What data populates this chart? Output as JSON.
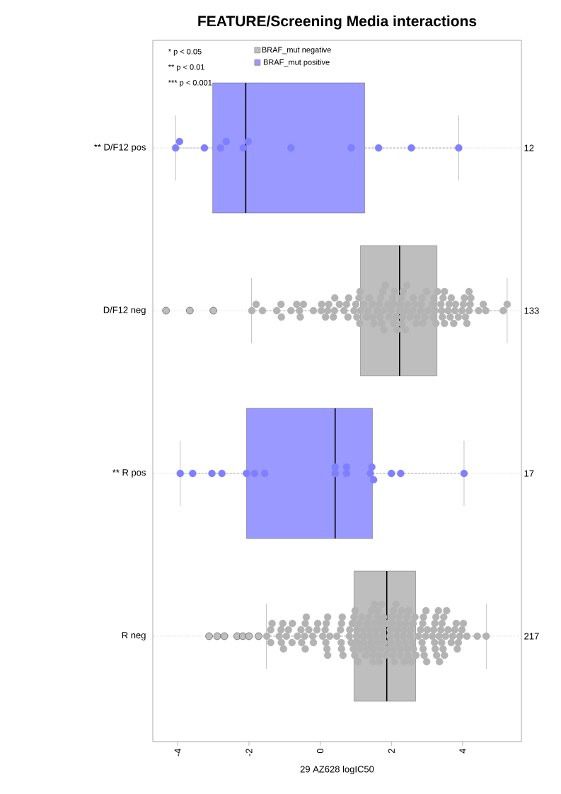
{
  "chart_data": {
    "type": "box",
    "title": "FEATURE/Screening Media interactions",
    "xlabel": "29 AZ628 logIC50",
    "orientation": "horizontal",
    "categories": [
      "** D/F12 pos",
      "D/F12 neg",
      "** R pos",
      "R neg"
    ],
    "y2_categories": [
      "12",
      "133",
      "17",
      "217"
    ],
    "xlim": [
      -4.7,
      5.65
    ],
    "xticks": [
      -4,
      -2,
      0,
      2,
      4
    ],
    "grid": "y",
    "legend": "top left",
    "marker": "circle",
    "annotations": [
      "* p < 0.05",
      "** p < 0.01",
      "*** p < 0.001"
    ],
    "series": [
      {
        "name": "BRAF_mut negative",
        "color": "#bebebe",
        "boxes": [
          null,
          {
            "low": -1.93,
            "q1": 1.13,
            "median": 2.23,
            "q3": 3.28,
            "high": 5.25,
            "outliers": [
              -4.33,
              -3.66,
              -3.0
            ]
          },
          null,
          {
            "low": -1.51,
            "q1": 0.95,
            "median": 1.87,
            "q3": 2.68,
            "high": 4.67,
            "outliers": [
              -3.12,
              -2.89,
              -2.69,
              -2.33,
              -2.17,
              -2.0,
              -1.73
            ]
          }
        ]
      },
      {
        "name": "BRAF_mut positive",
        "color": "#9999ff",
        "boxes": [
          {
            "low": -4.06,
            "q1": -3.02,
            "median": -2.09,
            "q3": 1.25,
            "high": 3.89
          },
          null,
          {
            "low": -3.93,
            "q1": -2.07,
            "median": 0.42,
            "q3": 1.47,
            "high": 4.04
          },
          null
        ]
      },
      {
        "type": "scatter",
        "color": "#7f7fff",
        "x": [
          "** D/F12 pos",
          "** D/F12 pos",
          "** D/F12 pos",
          "** D/F12 pos",
          "** D/F12 pos",
          "** D/F12 pos",
          "** D/F12 pos",
          "** D/F12 pos",
          "** D/F12 pos",
          "** D/F12 pos",
          "** D/F12 pos",
          "** D/F12 pos"
        ],
        "values": [
          -4.06,
          -3.95,
          -3.25,
          -2.8,
          -2.64,
          -2.16,
          -2.02,
          -0.82,
          0.87,
          1.64,
          2.56,
          3.89
        ]
      },
      {
        "type": "scatter",
        "color": "#b3b3b3",
        "x": [
          "D/F12 neg",
          "D/F12 neg",
          "D/F12 neg",
          "D/F12 neg",
          "D/F12 neg",
          "D/F12 neg",
          "D/F12 neg",
          "D/F12 neg",
          "D/F12 neg",
          "D/F12 neg",
          "D/F12 neg",
          "D/F12 neg",
          "D/F12 neg",
          "D/F12 neg",
          "D/F12 neg",
          "D/F12 neg",
          "D/F12 neg",
          "D/F12 neg",
          "D/F12 neg",
          "D/F12 neg",
          "D/F12 neg",
          "D/F12 neg",
          "D/F12 neg",
          "D/F12 neg",
          "D/F12 neg",
          "D/F12 neg",
          "D/F12 neg",
          "D/F12 neg",
          "D/F12 neg",
          "D/F12 neg",
          "D/F12 neg",
          "D/F12 neg",
          "D/F12 neg",
          "D/F12 neg",
          "D/F12 neg",
          "D/F12 neg",
          "D/F12 neg",
          "D/F12 neg",
          "D/F12 neg",
          "D/F12 neg",
          "D/F12 neg",
          "D/F12 neg",
          "D/F12 neg",
          "D/F12 neg",
          "D/F12 neg",
          "D/F12 neg",
          "D/F12 neg",
          "D/F12 neg",
          "D/F12 neg",
          "D/F12 neg",
          "D/F12 neg",
          "D/F12 neg",
          "D/F12 neg",
          "D/F12 neg",
          "D/F12 neg",
          "D/F12 neg",
          "D/F12 neg",
          "D/F12 neg",
          "D/F12 neg",
          "D/F12 neg",
          "D/F12 neg",
          "D/F12 neg",
          "D/F12 neg",
          "D/F12 neg",
          "D/F12 neg",
          "D/F12 neg",
          "D/F12 neg",
          "D/F12 neg",
          "D/F12 neg",
          "D/F12 neg",
          "D/F12 neg",
          "D/F12 neg",
          "D/F12 neg",
          "D/F12 neg",
          "D/F12 neg",
          "D/F12 neg",
          "D/F12 neg",
          "D/F12 neg",
          "D/F12 neg",
          "D/F12 neg",
          "D/F12 neg",
          "D/F12 neg",
          "D/F12 neg",
          "D/F12 neg",
          "D/F12 neg",
          "D/F12 neg",
          "D/F12 neg",
          "D/F12 neg",
          "D/F12 neg",
          "D/F12 neg",
          "D/F12 neg",
          "D/F12 neg",
          "D/F12 neg",
          "D/F12 neg",
          "D/F12 neg",
          "D/F12 neg",
          "D/F12 neg",
          "D/F12 neg",
          "D/F12 neg",
          "D/F12 neg",
          "D/F12 neg",
          "D/F12 neg",
          "D/F12 neg",
          "D/F12 neg",
          "D/F12 neg",
          "D/F12 neg",
          "D/F12 neg",
          "D/F12 neg",
          "D/F12 neg",
          "D/F12 neg",
          "D/F12 neg",
          "D/F12 neg",
          "D/F12 neg",
          "D/F12 neg"
        ],
        "values": [
          -1.92,
          -1.8,
          -1.62,
          -1.22,
          -1.1,
          -1.09,
          -0.82,
          -0.66,
          -0.58,
          -0.56,
          -0.47,
          -0.19,
          0.03,
          0.04,
          0.15,
          0.21,
          0.24,
          0.37,
          0.4,
          0.41,
          0.54,
          0.67,
          0.74,
          0.78,
          0.8,
          0.95,
          1.0,
          1.03,
          1.09,
          1.11,
          1.12,
          1.13,
          1.23,
          1.3,
          1.35,
          1.38,
          1.46,
          1.48,
          1.51,
          1.6,
          1.66,
          1.68,
          1.7,
          1.73,
          1.76,
          1.78,
          1.79,
          1.83,
          1.9,
          1.93,
          1.99,
          2.03,
          2.06,
          2.08,
          2.09,
          2.13,
          2.16,
          2.23,
          2.26,
          2.28,
          2.29,
          2.31,
          2.33,
          2.39,
          2.41,
          2.43,
          2.46,
          2.52,
          2.59,
          2.61,
          2.66,
          2.69,
          2.72,
          2.82,
          2.84,
          2.86,
          2.88,
          2.94,
          2.99,
          3.02,
          3.15,
          3.17,
          3.19,
          3.22,
          3.25,
          3.29,
          3.39,
          3.41,
          3.43,
          3.45,
          3.49,
          3.49,
          3.59,
          3.62,
          3.65,
          3.68,
          3.75,
          3.78,
          3.8,
          3.88,
          3.98,
          4.02,
          4.05,
          4.08,
          4.12,
          4.18,
          4.18,
          4.21,
          4.23,
          4.45,
          4.58,
          4.65,
          5.14,
          5.25
        ]
      },
      {
        "type": "scatter",
        "color": "#7f7fff",
        "x": [
          "** R pos",
          "** R pos",
          "** R pos",
          "** R pos",
          "** R pos",
          "** R pos",
          "** R pos",
          "** R pos",
          "** R pos",
          "** R pos",
          "** R pos",
          "** R pos",
          "** R pos",
          "** R pos",
          "** R pos",
          "** R pos",
          "** R pos"
        ],
        "values": [
          -3.93,
          -3.58,
          -3.04,
          -2.76,
          -2.07,
          -1.84,
          -1.56,
          0.42,
          0.42,
          0.74,
          0.74,
          1.41,
          1.45,
          1.5,
          2.0,
          2.26,
          4.04
        ]
      },
      {
        "type": "scatter",
        "color": "#b3b3b3",
        "x": [
          "R neg",
          "R neg",
          "R neg",
          "R neg",
          "R neg",
          "R neg",
          "R neg",
          "R neg",
          "R neg",
          "R neg",
          "R neg",
          "R neg",
          "R neg",
          "R neg",
          "R neg",
          "R neg",
          "R neg",
          "R neg",
          "R neg",
          "R neg",
          "R neg",
          "R neg",
          "R neg",
          "R neg",
          "R neg",
          "R neg",
          "R neg",
          "R neg",
          "R neg",
          "R neg",
          "R neg",
          "R neg",
          "R neg",
          "R neg",
          "R neg",
          "R neg",
          "R neg",
          "R neg",
          "R neg",
          "R neg",
          "R neg",
          "R neg",
          "R neg",
          "R neg",
          "R neg",
          "R neg",
          "R neg",
          "R neg",
          "R neg",
          "R neg",
          "R neg",
          "R neg",
          "R neg",
          "R neg",
          "R neg",
          "R neg",
          "R neg",
          "R neg",
          "R neg",
          "R neg",
          "R neg",
          "R neg",
          "R neg",
          "R neg",
          "R neg",
          "R neg",
          "R neg",
          "R neg",
          "R neg",
          "R neg",
          "R neg",
          "R neg",
          "R neg",
          "R neg",
          "R neg",
          "R neg",
          "R neg",
          "R neg",
          "R neg",
          "R neg",
          "R neg",
          "R neg",
          "R neg",
          "R neg",
          "R neg",
          "R neg",
          "R neg",
          "R neg",
          "R neg",
          "R neg",
          "R neg",
          "R neg",
          "R neg",
          "R neg",
          "R neg",
          "R neg",
          "R neg",
          "R neg",
          "R neg",
          "R neg",
          "R neg",
          "R neg",
          "R neg",
          "R neg",
          "R neg",
          "R neg",
          "R neg",
          "R neg",
          "R neg",
          "R neg",
          "R neg",
          "R neg",
          "R neg",
          "R neg",
          "R neg",
          "R neg",
          "R neg",
          "R neg",
          "R neg",
          "R neg",
          "R neg",
          "R neg",
          "R neg",
          "R neg",
          "R neg",
          "R neg",
          "R neg",
          "R neg",
          "R neg",
          "R neg",
          "R neg",
          "R neg",
          "R neg",
          "R neg",
          "R neg",
          "R neg",
          "R neg",
          "R neg",
          "R neg",
          "R neg",
          "R neg",
          "R neg",
          "R neg",
          "R neg",
          "R neg",
          "R neg",
          "R neg",
          "R neg",
          "R neg",
          "R neg",
          "R neg",
          "R neg",
          "R neg",
          "R neg",
          "R neg",
          "R neg",
          "R neg",
          "R neg",
          "R neg",
          "R neg",
          "R neg",
          "R neg",
          "R neg",
          "R neg",
          "R neg"
        ],
        "values": [
          -1.5,
          -1.39,
          -1.39,
          -1.35,
          -1.15,
          -1.1,
          -1.09,
          -1.05,
          -1.03,
          -0.95,
          -0.89,
          -0.79,
          -0.78,
          -0.64,
          -0.54,
          -0.52,
          -0.44,
          -0.42,
          -0.42,
          -0.39,
          -0.32,
          -0.21,
          -0.19,
          -0.09,
          -0.07,
          0.07,
          0.14,
          0.16,
          0.17,
          0.19,
          0.21,
          0.21,
          0.27,
          0.47,
          0.57,
          0.59,
          0.6,
          0.6,
          0.62,
          0.64,
          0.82,
          0.83,
          0.87,
          0.9,
          0.93,
          0.95,
          0.97,
          0.98,
          1.02,
          1.03,
          1.05,
          1.07,
          1.1,
          1.13,
          1.17,
          1.2,
          1.22,
          1.23,
          1.27,
          1.31,
          1.33,
          1.37,
          1.38,
          1.4,
          1.43,
          1.44,
          1.46,
          1.48,
          1.5,
          1.51,
          1.53,
          1.56,
          1.58,
          1.6,
          1.62,
          1.63,
          1.64,
          1.66,
          1.68,
          1.7,
          1.73,
          1.75,
          1.76,
          1.78,
          1.8,
          1.83,
          1.86,
          1.9,
          1.96,
          1.97,
          1.99,
          2.01,
          2.03,
          2.04,
          2.06,
          2.08,
          2.09,
          2.13,
          2.15,
          2.16,
          2.19,
          2.21,
          2.23,
          2.24,
          2.26,
          2.29,
          2.33,
          2.35,
          2.36,
          2.39,
          2.41,
          2.43,
          2.44,
          2.46,
          2.49,
          2.52,
          2.54,
          2.56,
          2.59,
          2.61,
          2.62,
          2.66,
          2.69,
          2.76,
          2.82,
          2.86,
          2.88,
          2.89,
          2.9,
          2.92,
          2.96,
          2.97,
          2.99,
          3.01,
          3.15,
          3.19,
          3.21,
          3.22,
          3.23,
          3.25,
          3.27,
          3.32,
          3.34,
          3.35,
          3.39,
          3.41,
          3.42,
          3.45,
          3.47,
          3.49,
          3.52,
          3.55,
          3.59,
          3.68,
          3.72,
          3.78,
          3.82,
          3.85,
          3.88,
          3.92,
          3.98,
          4.02,
          4.12,
          4.41,
          4.66
        ]
      }
    ]
  }
}
